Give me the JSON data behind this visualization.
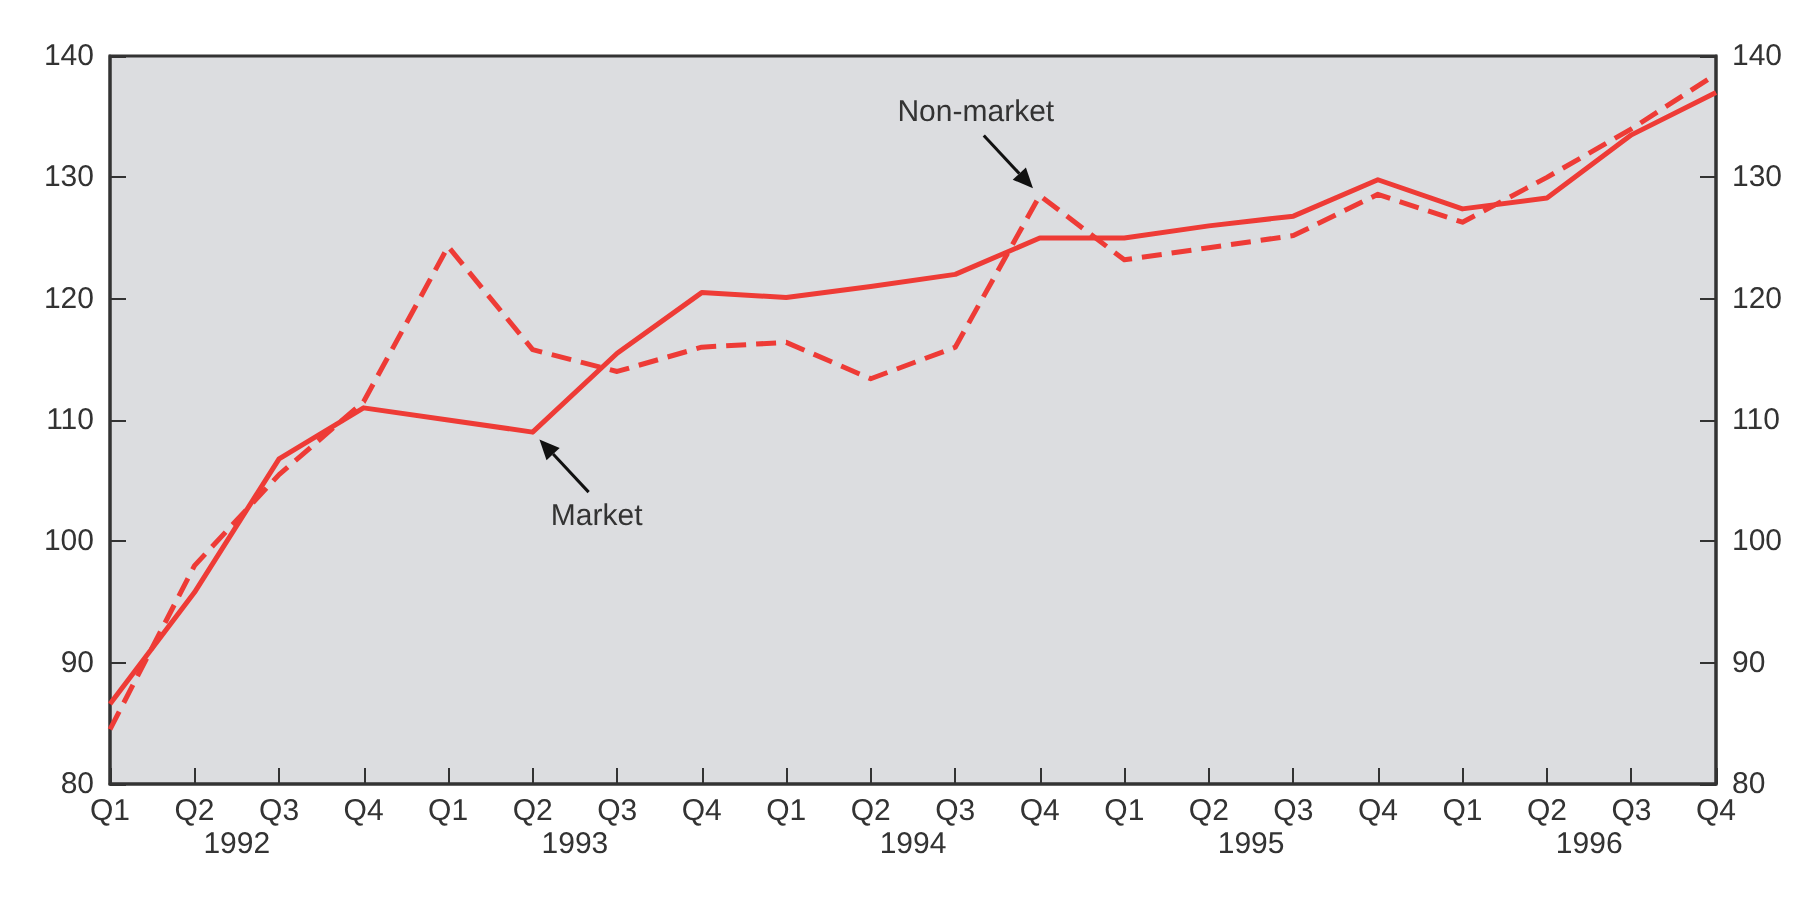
{
  "chart_data": {
    "type": "line",
    "categories": [
      "Q1",
      "Q2",
      "Q3",
      "Q4",
      "Q1",
      "Q2",
      "Q3",
      "Q4",
      "Q1",
      "Q2",
      "Q3",
      "Q4",
      "Q1",
      "Q2",
      "Q3",
      "Q4",
      "Q1",
      "Q2",
      "Q3",
      "Q4"
    ],
    "series": [
      {
        "name": "Market",
        "color": "#ee3b36",
        "line_style": "solid",
        "values": [
          86.6,
          95.8,
          106.8,
          111,
          110,
          109,
          115.5,
          120.5,
          120.1,
          121,
          122,
          125,
          125,
          126,
          126.8,
          129.8,
          127.4,
          128.3,
          133.5,
          137
        ]
      },
      {
        "name": "Non-market",
        "color": "#ee3b36",
        "line_style": "dashed",
        "values": [
          84.5,
          98,
          105.5,
          111.5,
          124.3,
          115.8,
          114,
          116,
          116.4,
          113.4,
          116,
          128.5,
          123.2,
          124.2,
          125.2,
          128.6,
          126.3,
          130,
          134,
          138.5
        ]
      }
    ],
    "ylim": [
      80,
      140
    ],
    "yticks": [
      80,
      90,
      100,
      110,
      120,
      130,
      140
    ],
    "y2lim": [
      80,
      140
    ],
    "y2ticks": [
      80,
      90,
      100,
      110,
      120,
      130,
      140
    ],
    "annotations": [
      "1992",
      "1993",
      "1994",
      "1995",
      "1996"
    ],
    "grid": false,
    "marker": "none"
  }
}
